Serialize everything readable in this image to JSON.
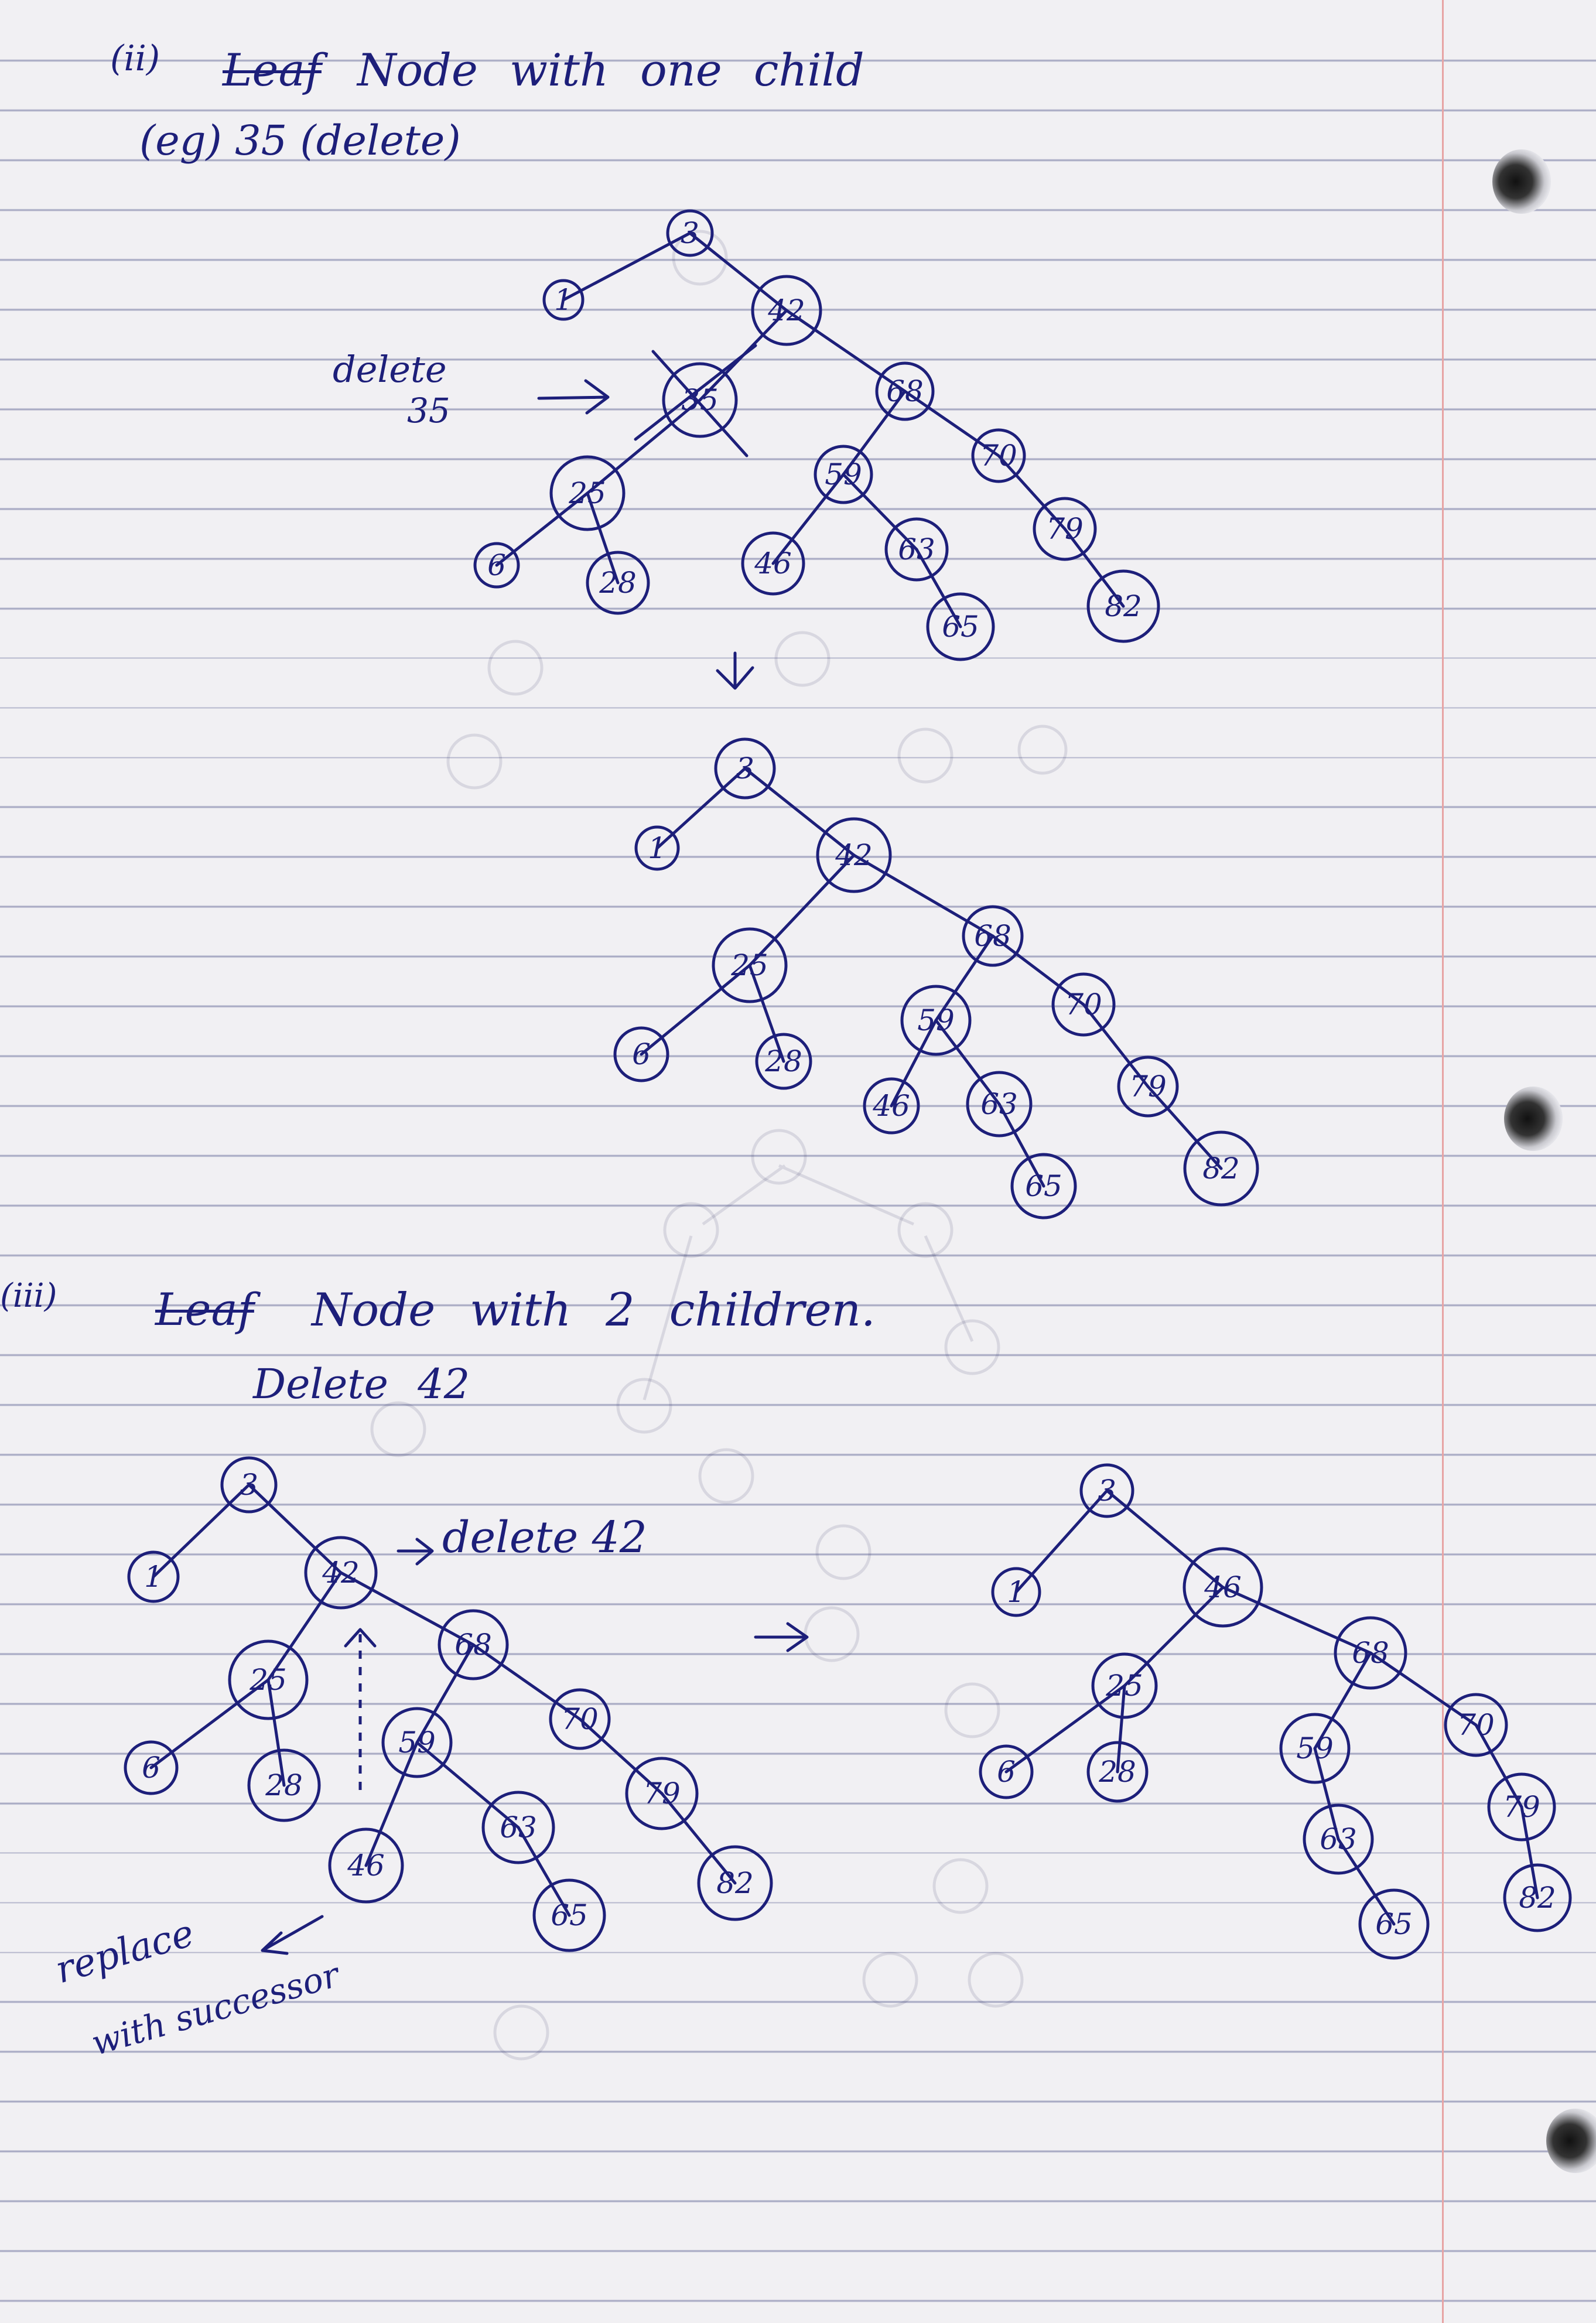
{
  "section_ii": {
    "number": "(ii)",
    "struck_word": "Leaf",
    "title_rest": "Node with one child",
    "example": "(eg) 35 (delete)",
    "delete_note_line1": "delete",
    "delete_note_line2": "35"
  },
  "section_iii": {
    "number": "(iii)",
    "struck_word": "Leaf",
    "title_rest": "Node with 2 children.",
    "subtitle": "Delete 42",
    "delete_note": "delete 42",
    "replace_note_line1": "replace",
    "replace_note_line2": "with successor"
  },
  "tree_before_one_child": {
    "deleted_node": "35",
    "nodes": {
      "3": "3",
      "1": "1",
      "42": "42",
      "35": "35",
      "68": "68",
      "70": "70",
      "25": "25",
      "59": "59",
      "79": "79",
      "6": "6",
      "28": "28",
      "46": "46",
      "63": "63",
      "82": "82",
      "65": "65"
    }
  },
  "tree_after_one_child": {
    "nodes": {
      "3": "3",
      "1": "1",
      "42": "42",
      "25": "25",
      "68": "68",
      "6": "6",
      "28": "28",
      "59": "59",
      "70": "70",
      "46": "46",
      "63": "63",
      "79": "79",
      "65": "65",
      "82": "82"
    }
  },
  "tree_before_two_children": {
    "nodes": {
      "3": "3",
      "1": "1",
      "42": "42",
      "25": "25",
      "68": "68",
      "6": "6",
      "28": "28",
      "59": "59",
      "70": "70",
      "46": "46",
      "63": "63",
      "79": "79",
      "65": "65",
      "82": "82"
    }
  },
  "tree_after_two_children": {
    "nodes": {
      "3": "3",
      "1": "1",
      "46": "46",
      "25": "25",
      "68": "68",
      "6": "6",
      "28": "28",
      "59": "59",
      "70": "70",
      "63": "63",
      "79": "79",
      "65": "65",
      "82": "82"
    }
  }
}
